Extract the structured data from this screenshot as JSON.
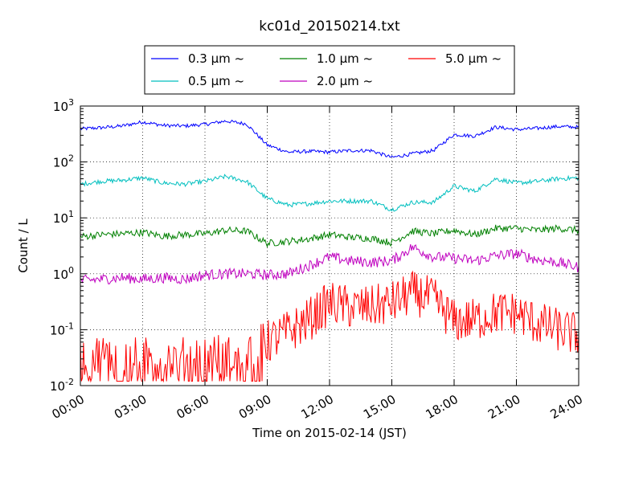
{
  "chart_data": {
    "type": "line",
    "title": "kc01d_20150214.txt",
    "xlabel": "Time on 2015-02-14 (JST)",
    "ylabel": "Count / L",
    "yscale": "log",
    "ylim": [
      0.01,
      1000
    ],
    "y_ticks": [
      {
        "value": 0.01,
        "base": "10",
        "exp": "-2"
      },
      {
        "value": 0.1,
        "base": "10",
        "exp": "-1"
      },
      {
        "value": 1,
        "base": "10",
        "exp": "0"
      },
      {
        "value": 10,
        "base": "10",
        "exp": "1"
      },
      {
        "value": 100,
        "base": "10",
        "exp": "2"
      },
      {
        "value": 1000,
        "base": "10",
        "exp": "3"
      }
    ],
    "xlim": [
      "00:00",
      "24:00"
    ],
    "x_ticks": [
      "00:00",
      "03:00",
      "06:00",
      "09:00",
      "12:00",
      "15:00",
      "18:00",
      "21:00",
      "24:00"
    ],
    "grid": true,
    "legend_position": "top-center, above plot",
    "x_hours": [
      0,
      1,
      2,
      3,
      4,
      5,
      6,
      7,
      8,
      9,
      10,
      11,
      12,
      13,
      14,
      15,
      16,
      17,
      18,
      19,
      20,
      21,
      22,
      23,
      24
    ],
    "series": [
      {
        "name": "0.3 μm ~",
        "color": "#0000ff",
        "noise": 0.02,
        "values": [
          390,
          410,
          440,
          520,
          450,
          440,
          470,
          540,
          480,
          200,
          150,
          155,
          150,
          160,
          160,
          120,
          140,
          160,
          310,
          290,
          420,
          380,
          400,
          430,
          420
        ]
      },
      {
        "name": "0.5 μm ~",
        "color": "#00bfbf",
        "noise": 0.025,
        "values": [
          40,
          45,
          47,
          52,
          42,
          40,
          45,
          55,
          45,
          22,
          17,
          18,
          20,
          20,
          20,
          14,
          19,
          19,
          37,
          30,
          50,
          42,
          45,
          50,
          52
        ]
      },
      {
        "name": "1.0 μm ~",
        "color": "#008000",
        "noise": 0.04,
        "values": [
          4.6,
          5.0,
          5.2,
          5.5,
          4.7,
          5.0,
          5.2,
          6.0,
          5.8,
          3.5,
          3.8,
          4.2,
          5.0,
          4.5,
          4.3,
          3.6,
          5.8,
          5.2,
          6.0,
          5.0,
          6.5,
          6.5,
          6.0,
          6.5,
          6.0
        ]
      },
      {
        "name": "2.0 μm ~",
        "color": "#bf00bf",
        "noise": 0.06,
        "values": [
          0.75,
          0.8,
          0.85,
          0.8,
          0.85,
          0.8,
          0.95,
          1.0,
          1.0,
          0.95,
          1.0,
          1.4,
          2.0,
          1.7,
          1.6,
          1.7,
          3.0,
          2.0,
          1.9,
          1.7,
          2.1,
          2.3,
          1.8,
          1.6,
          1.3
        ]
      },
      {
        "name": "5.0 μm ~",
        "color": "#ff0000",
        "noise": 0.25,
        "values": [
          0.03,
          0.035,
          0.03,
          0.03,
          0.03,
          0.03,
          0.035,
          0.035,
          0.04,
          0.06,
          0.09,
          0.15,
          0.3,
          0.25,
          0.25,
          0.3,
          0.45,
          0.35,
          0.14,
          0.15,
          0.2,
          0.2,
          0.13,
          0.1,
          0.08
        ]
      }
    ]
  }
}
